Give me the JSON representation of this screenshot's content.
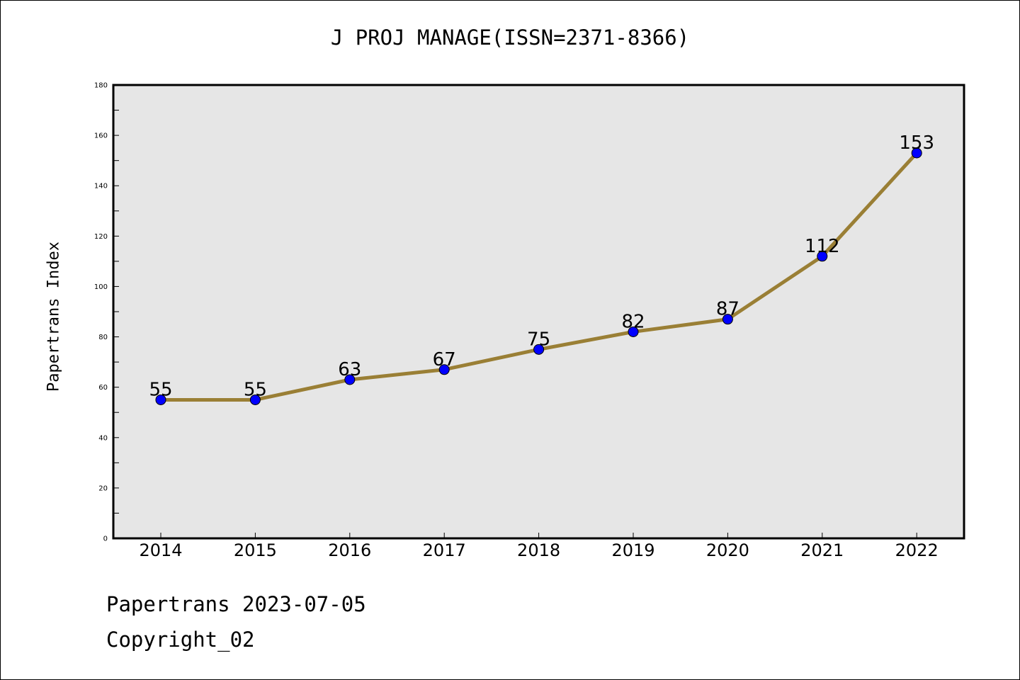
{
  "chart_data": {
    "type": "line",
    "title": "J PROJ MANAGE(ISSN=2371-8366)",
    "xlabel": "",
    "ylabel": "Papertrans Index",
    "categories": [
      "2014",
      "2015",
      "2016",
      "2017",
      "2018",
      "2019",
      "2020",
      "2021",
      "2022"
    ],
    "values": [
      55,
      55,
      63,
      67,
      75,
      82,
      87,
      112,
      153
    ],
    "data_labels": [
      "55",
      "55",
      "63",
      "67",
      "75",
      "82",
      "87",
      "112",
      "153"
    ],
    "ylim": [
      0,
      180
    ],
    "yticks": [
      "0",
      "20",
      "40",
      "60",
      "80",
      "100",
      "120",
      "140",
      "160",
      "180"
    ],
    "grid": false,
    "colors": {
      "line": "#9a7f35",
      "marker": "#0000ff",
      "plot_background": "#e6e6e6"
    }
  },
  "footer": {
    "date_line": "Papertrans 2023-07-05",
    "copyright": "Copyright_02"
  }
}
